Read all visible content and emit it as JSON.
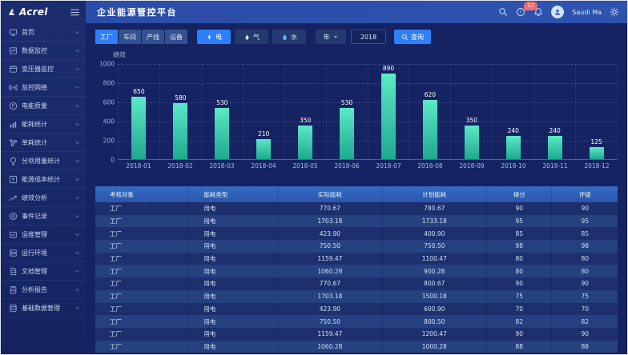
{
  "brand": {
    "name": "Acrel"
  },
  "topbar": {
    "title": "企业能源管控平台",
    "notification_count": "17",
    "user_name": "Saudi Ma"
  },
  "sidebar": {
    "items": [
      {
        "label": "首页",
        "icon": "home-icon"
      },
      {
        "label": "数据监控",
        "icon": "data-monitor-icon"
      },
      {
        "label": "变压器监控",
        "icon": "transformer-icon"
      },
      {
        "label": "监控网络",
        "icon": "network-icon"
      },
      {
        "label": "电能质量",
        "icon": "power-quality-icon"
      },
      {
        "label": "能耗统计",
        "icon": "energy-stats-icon"
      },
      {
        "label": "单耗统计",
        "icon": "unit-consumption-icon"
      },
      {
        "label": "分项用量统计",
        "icon": "subentry-usage-icon"
      },
      {
        "label": "能源成本统计",
        "icon": "energy-cost-icon"
      },
      {
        "label": "绩效分析",
        "icon": "performance-icon"
      },
      {
        "label": "事件记录",
        "icon": "event-record-icon"
      },
      {
        "label": "运维管理",
        "icon": "maintenance-icon"
      },
      {
        "label": "运行环境",
        "icon": "environment-icon"
      },
      {
        "label": "文档管理",
        "icon": "document-icon"
      },
      {
        "label": "分析报告",
        "icon": "report-icon"
      },
      {
        "label": "基础数据管理",
        "icon": "base-data-icon"
      }
    ]
  },
  "filters": {
    "dimension_tabs": [
      {
        "label": "工厂",
        "active": true
      },
      {
        "label": "车间",
        "active": false
      },
      {
        "label": "产线",
        "active": false
      },
      {
        "label": "设备",
        "active": false
      }
    ],
    "energy_tabs": [
      {
        "label": "电",
        "icon": "lightning-icon",
        "active": true
      },
      {
        "label": "气",
        "icon": "flame-icon",
        "active": false
      },
      {
        "label": "水",
        "icon": "water-drop-icon",
        "active": false
      }
    ],
    "period_label": "年",
    "year_value": "2018",
    "query_label": "查询"
  },
  "chart_data": {
    "type": "bar",
    "title": "绩效",
    "categories": [
      "2018-01",
      "2018-02",
      "2018-03",
      "2018-04",
      "2018-05",
      "2018-06",
      "2018-07",
      "2018-08",
      "2018-09",
      "2018-10",
      "2018-11",
      "2018-12"
    ],
    "values": [
      650,
      580,
      530,
      210,
      350,
      530,
      890,
      620,
      350,
      240,
      240,
      125
    ],
    "xlabel": "",
    "ylabel": "",
    "ylim": [
      0,
      1000
    ],
    "ytick_step": 200,
    "grid": true,
    "legend_position": "none",
    "bar_color_top": "#5be9c7",
    "bar_color_bottom": "#1fa98f"
  },
  "table": {
    "headers": [
      "考核对象",
      "能耗类型",
      "实际能耗",
      "计划能耗",
      "得分",
      "评级"
    ],
    "rows": [
      [
        "工厂",
        "用电",
        "770.67",
        "780.67",
        "90",
        "90"
      ],
      [
        "工厂",
        "用电",
        "1703.18",
        "1733.18",
        "95",
        "95"
      ],
      [
        "工厂",
        "用电",
        "423.90",
        "400.90",
        "85",
        "85"
      ],
      [
        "工厂",
        "用电",
        "750.50",
        "750.50",
        "98",
        "98"
      ],
      [
        "工厂",
        "用电",
        "1159.47",
        "1100.47",
        "80",
        "80"
      ],
      [
        "工厂",
        "用电",
        "1060.28",
        "900.28",
        "80",
        "80"
      ],
      [
        "工厂",
        "用电",
        "770.67",
        "800.67",
        "90",
        "90"
      ],
      [
        "工厂",
        "用电",
        "1703.18",
        "1500.18",
        "75",
        "75"
      ],
      [
        "工厂",
        "用电",
        "423.90",
        "600.90",
        "70",
        "70"
      ],
      [
        "工厂",
        "用电",
        "750.50",
        "800.50",
        "82",
        "82"
      ],
      [
        "工厂",
        "用电",
        "1159.47",
        "1200.47",
        "90",
        "90"
      ],
      [
        "工厂",
        "用电",
        "1060.28",
        "1000.28",
        "88",
        "88"
      ]
    ]
  },
  "colors": {
    "accent": "#2f80f8",
    "topbar": "#2c4fa9",
    "sidebar_bg": "#1a2b6a",
    "content_bg": "#152363",
    "table_header": "#2e5cb2",
    "row_odd": "#1d2f6c",
    "row_even": "#25417f",
    "badge": "#ef6c6c",
    "bar_top": "#5be9c7",
    "bar_bottom": "#1fa98f"
  }
}
